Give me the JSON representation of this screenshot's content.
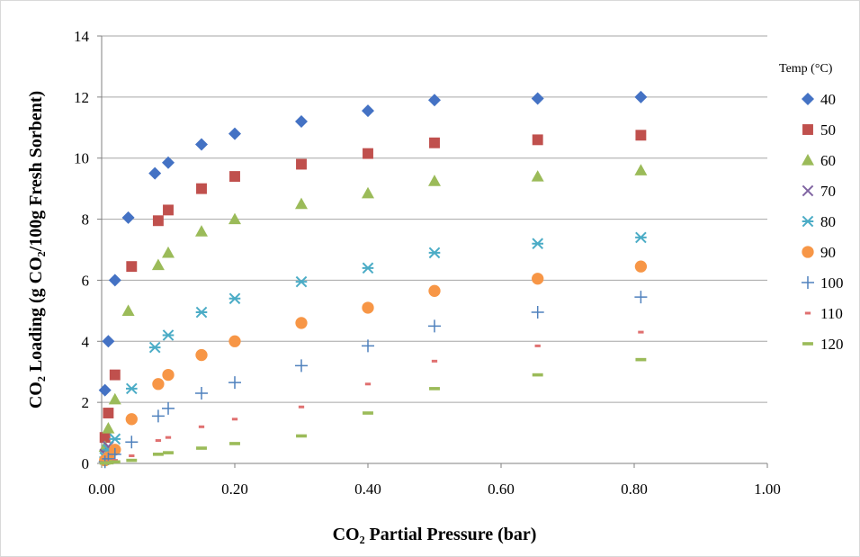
{
  "chart_data": {
    "type": "scatter",
    "xlabel": "CO₂ Partial Pressure (bar)",
    "ylabel": "CO₂ Loading  (g CO₂/100g Fresh Sorbent)",
    "xlim": [
      0,
      1.0
    ],
    "ylim": [
      0,
      14
    ],
    "xticks": [
      "0.00",
      "0.20",
      "0.40",
      "0.60",
      "0.80",
      "1.00"
    ],
    "yticks": [
      "0",
      "2",
      "4",
      "6",
      "8",
      "10",
      "12",
      "14"
    ],
    "grid": "horizontal",
    "legend_position": "right",
    "legend_title": "Temp (°C)",
    "series": [
      {
        "name": "40",
        "marker": "diamond",
        "color": "#4472C4",
        "x": [
          0.005,
          0.01,
          0.02,
          0.04,
          0.08,
          0.1,
          0.15,
          0.2,
          0.3,
          0.4,
          0.5,
          0.655,
          0.81
        ],
        "y": [
          2.4,
          4.0,
          6.0,
          8.05,
          9.5,
          9.85,
          10.45,
          10.8,
          11.2,
          11.55,
          11.9,
          11.95,
          12.0
        ]
      },
      {
        "name": "50",
        "marker": "square",
        "color": "#C0504D",
        "x": [
          0.005,
          0.01,
          0.02,
          0.045,
          0.085,
          0.1,
          0.15,
          0.2,
          0.3,
          0.4,
          0.5,
          0.655,
          0.81
        ],
        "y": [
          0.85,
          1.65,
          2.9,
          6.45,
          7.95,
          8.3,
          9.0,
          9.4,
          9.8,
          10.15,
          10.5,
          10.6,
          10.75
        ]
      },
      {
        "name": "60",
        "marker": "triangle",
        "color": "#9BBB59",
        "x": [
          0.005,
          0.01,
          0.02,
          0.04,
          0.085,
          0.1,
          0.15,
          0.2,
          0.3,
          0.4,
          0.5,
          0.655,
          0.81
        ],
        "y": [
          0.55,
          1.15,
          2.1,
          5.0,
          6.5,
          6.9,
          7.6,
          8.0,
          8.5,
          8.85,
          9.25,
          9.4,
          9.6
        ]
      },
      {
        "name": "70",
        "marker": "x",
        "color": "#8064A2",
        "x": [
          0.005,
          0.01
        ],
        "y": [
          0.3,
          0.55
        ]
      },
      {
        "name": "80",
        "marker": "asterisk",
        "color": "#4BACC6",
        "x": [
          0.005,
          0.01,
          0.02,
          0.045,
          0.08,
          0.1,
          0.15,
          0.2,
          0.3,
          0.4,
          0.5,
          0.655,
          0.81
        ],
        "y": [
          0.2,
          0.45,
          0.8,
          2.45,
          3.8,
          4.2,
          4.95,
          5.4,
          5.95,
          6.4,
          6.9,
          7.2,
          7.4
        ]
      },
      {
        "name": "90",
        "marker": "circle",
        "color": "#F79646",
        "x": [
          0.005,
          0.01,
          0.02,
          0.045,
          0.085,
          0.1,
          0.15,
          0.2,
          0.3,
          0.4,
          0.5,
          0.655,
          0.81
        ],
        "y": [
          0.1,
          0.2,
          0.45,
          1.45,
          2.6,
          2.9,
          3.55,
          4.0,
          4.6,
          5.1,
          5.65,
          6.05,
          6.45
        ]
      },
      {
        "name": "100",
        "marker": "plus",
        "color": "#4F81BD",
        "x": [
          0.005,
          0.01,
          0.02,
          0.045,
          0.085,
          0.1,
          0.15,
          0.2,
          0.3,
          0.4,
          0.5,
          0.655,
          0.81
        ],
        "y": [
          0.05,
          0.15,
          0.3,
          0.7,
          1.55,
          1.8,
          2.3,
          2.65,
          3.2,
          3.85,
          4.5,
          4.95,
          5.45
        ]
      },
      {
        "name": "110",
        "marker": "short-dash",
        "color": "#E07070",
        "x": [
          0.005,
          0.01,
          0.02,
          0.045,
          0.085,
          0.1,
          0.15,
          0.2,
          0.3,
          0.4,
          0.5,
          0.655,
          0.81
        ],
        "y": [
          0.02,
          0.05,
          0.1,
          0.25,
          0.75,
          0.85,
          1.2,
          1.45,
          1.85,
          2.6,
          3.35,
          3.85,
          4.3
        ]
      },
      {
        "name": "120",
        "marker": "long-dash",
        "color": "#9BBB59",
        "x": [
          0.005,
          0.01,
          0.02,
          0.045,
          0.085,
          0.1,
          0.15,
          0.2,
          0.3,
          0.4,
          0.5,
          0.655,
          0.81
        ],
        "y": [
          0.01,
          0.02,
          0.05,
          0.1,
          0.3,
          0.35,
          0.5,
          0.65,
          0.9,
          1.65,
          2.45,
          2.9,
          3.4
        ]
      }
    ]
  }
}
